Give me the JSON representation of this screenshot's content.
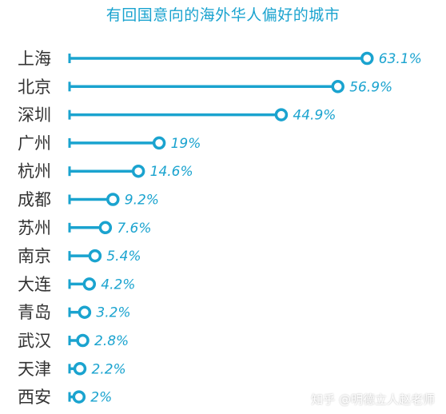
{
  "chart_data": {
    "type": "bar",
    "title": "有回国意向的海外华人偏好的城市",
    "categories": [
      "上海",
      "北京",
      "深圳",
      "广州",
      "杭州",
      "成都",
      "苏州",
      "南京",
      "大连",
      "青岛",
      "武汉",
      "天津",
      "西安"
    ],
    "values": [
      63.1,
      56.9,
      44.9,
      19,
      14.6,
      9.2,
      7.6,
      5.4,
      4.2,
      3.2,
      2.8,
      2.2,
      2
    ],
    "value_labels": [
      "63.1%",
      "56.9%",
      "44.9%",
      "19%",
      "14.6%",
      "9.2%",
      "7.6%",
      "5.4%",
      "4.2%",
      "3.2%",
      "2.8%",
      "2.2%",
      "2%"
    ],
    "xlabel": "",
    "ylabel": "",
    "xlim": [
      0,
      100
    ],
    "grid": false,
    "orientation": "horizontal",
    "marker": "lollipop-ring",
    "colors": {
      "bar": "#1aa3cf",
      "label": "#333333",
      "value": "#1aa3cf",
      "title": "#1aa3cf"
    }
  },
  "watermark": "知乎 @明德立人赵老师"
}
